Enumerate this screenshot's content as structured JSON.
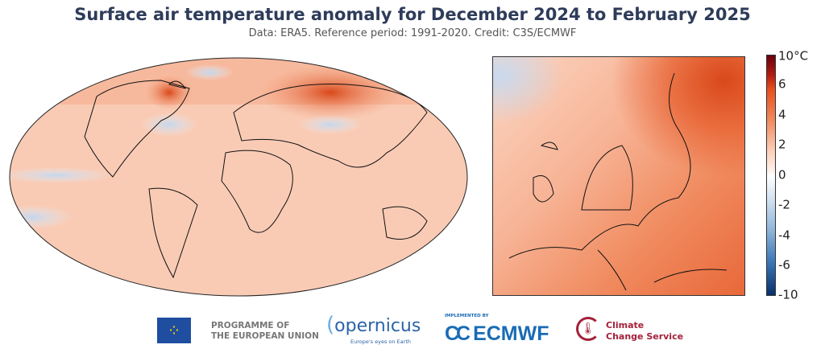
{
  "title": "Surface air temperature anomaly for December 2024 to February 2025",
  "subtitle": "Data: ERA5.  Reference period: 1991-2020.  Credit: C3S/ECMWF",
  "colorbar": {
    "unit": "°C",
    "ticks": [
      "10°C",
      "6",
      "4",
      "2",
      "0",
      "-2",
      "-4",
      "-6",
      "-10"
    ],
    "colors": [
      "#67000d",
      "#e6501b",
      "#f08a5e",
      "#fbd0b9",
      "#ffffff",
      "#d3e2f1",
      "#8fb5d9",
      "#3b78b8",
      "#08306b"
    ]
  },
  "maps": {
    "global": "world-robinson-anomaly",
    "regional": "europe-anomaly"
  },
  "logos": {
    "eu_line1": "PROGRAMME OF",
    "eu_line2": "THE EUROPEAN UNION",
    "copernicus": "opernicus",
    "copernicus_tagline": "Europe's eyes on Earth",
    "ecmwf_implemented": "IMPLEMENTED BY",
    "ecmwf": "ECMWF",
    "c3s_line1": "Climate",
    "c3s_line2": "Change Service"
  }
}
